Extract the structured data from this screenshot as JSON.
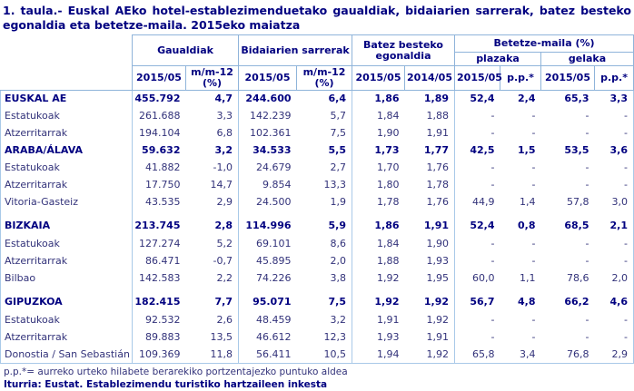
{
  "title": "1. taula.- Euskal AEko hotel-establezimenduetako gaualdiak, bidaiarien sarrerak, batez besteko egonaldia eta betetze-maila. 2015eko maiatza",
  "colors": {
    "text_navy": "#000080",
    "text_regular": "#32327a",
    "border_light_blue": "#a9c9e8"
  },
  "table": {
    "header": {
      "gaualdiak": "Gaualdiak",
      "bidaiarien": "Bidaiarien sarrerak",
      "batez": "Batez besteko egonaldia",
      "betetze": "Betetze-maila (%)",
      "plazaka": "plazaka",
      "gelaka": "gelaka",
      "sub": [
        "2015/05",
        "m/m-12 (%)",
        "2015/05",
        "m/m-12 (%)",
        "2015/05",
        "2014/05",
        "2015/05",
        "p.p.*",
        "2015/05",
        "p.p.*"
      ]
    },
    "rows": [
      {
        "label": "EUSKAL AE",
        "style": "group",
        "gap": false,
        "values": [
          "455.792",
          "4,7",
          "244.600",
          "6,4",
          "1,86",
          "1,89",
          "52,4",
          "2,4",
          "65,3",
          "3,3"
        ]
      },
      {
        "label": "Estatukoak",
        "style": "sub",
        "gap": false,
        "values": [
          "261.688",
          "3,3",
          "142.239",
          "5,7",
          "1,84",
          "1,88",
          "-",
          "-",
          "-",
          "-"
        ]
      },
      {
        "label": "Atzerritarrak",
        "style": "sub",
        "gap": false,
        "values": [
          "194.104",
          "6,8",
          "102.361",
          "7,5",
          "1,90",
          "1,91",
          "-",
          "-",
          "-",
          "-"
        ]
      },
      {
        "label": "ARABA/ÁLAVA",
        "style": "group",
        "gap": false,
        "values": [
          "59.632",
          "3,2",
          "34.533",
          "5,5",
          "1,73",
          "1,77",
          "42,5",
          "1,5",
          "53,5",
          "3,6"
        ]
      },
      {
        "label": "Estatukoak",
        "style": "sub",
        "gap": false,
        "values": [
          "41.882",
          "-1,0",
          "24.679",
          "2,7",
          "1,70",
          "1,76",
          "-",
          "-",
          "-",
          "-"
        ]
      },
      {
        "label": "Atzerritarrak",
        "style": "sub",
        "gap": false,
        "values": [
          "17.750",
          "14,7",
          "9.854",
          "13,3",
          "1,80",
          "1,78",
          "-",
          "-",
          "-",
          "-"
        ]
      },
      {
        "label": "Vitoria-Gasteiz",
        "style": "sub",
        "gap": false,
        "values": [
          "43.535",
          "2,9",
          "24.500",
          "1,9",
          "1,78",
          "1,76",
          "44,9",
          "1,4",
          "57,8",
          "3,0"
        ]
      },
      {
        "label": "BIZKAIA",
        "style": "group",
        "gap": true,
        "values": [
          "213.745",
          "2,8",
          "114.996",
          "5,9",
          "1,86",
          "1,91",
          "52,4",
          "0,8",
          "68,5",
          "2,1"
        ]
      },
      {
        "label": "Estatukoak",
        "style": "sub",
        "gap": false,
        "values": [
          "127.274",
          "5,2",
          "69.101",
          "8,6",
          "1,84",
          "1,90",
          "-",
          "-",
          "-",
          "-"
        ]
      },
      {
        "label": "Atzerritarrak",
        "style": "sub",
        "gap": false,
        "values": [
          "86.471",
          "-0,7",
          "45.895",
          "2,0",
          "1,88",
          "1,93",
          "-",
          "-",
          "-",
          "-"
        ]
      },
      {
        "label": "Bilbao",
        "style": "sub",
        "gap": false,
        "values": [
          "142.583",
          "2,2",
          "74.226",
          "3,8",
          "1,92",
          "1,95",
          "60,0",
          "1,1",
          "78,6",
          "2,0"
        ]
      },
      {
        "label": "GIPUZKOA",
        "style": "group",
        "gap": true,
        "values": [
          "182.415",
          "7,7",
          "95.071",
          "7,5",
          "1,92",
          "1,92",
          "56,7",
          "4,8",
          "66,2",
          "4,6"
        ]
      },
      {
        "label": "Estatukoak",
        "style": "sub",
        "gap": false,
        "values": [
          "92.532",
          "2,6",
          "48.459",
          "3,2",
          "1,91",
          "1,92",
          "-",
          "-",
          "-",
          "-"
        ]
      },
      {
        "label": "Atzerritarrak",
        "style": "sub",
        "gap": false,
        "values": [
          "89.883",
          "13,5",
          "46.612",
          "12,3",
          "1,93",
          "1,91",
          "-",
          "-",
          "-",
          "-"
        ]
      },
      {
        "label": "Donostia / San Sebastián",
        "style": "sub",
        "gap": false,
        "values": [
          "109.369",
          "11,8",
          "56.411",
          "10,5",
          "1,94",
          "1,92",
          "65,8",
          "3,4",
          "76,8",
          "2,9"
        ]
      }
    ]
  },
  "footnote": "p.p.*= aurreko urteko hilabete berarekiko portzentajezko puntuko aldea",
  "source": "Iturria: Eustat. Establezimendu turistiko hartzaileen inkesta"
}
